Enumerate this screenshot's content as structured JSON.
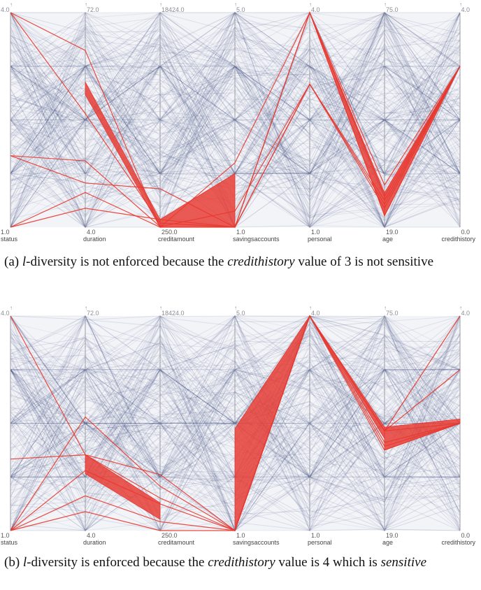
{
  "chart_data": [
    {
      "type": "parallel-coordinates",
      "axes": [
        {
          "name": "status",
          "max_label": "4.0",
          "min_label": "1.0",
          "range": [
            1,
            4
          ]
        },
        {
          "name": "duration",
          "max_label": "72.0",
          "min_label": "4.0",
          "range": [
            4,
            72
          ]
        },
        {
          "name": "creditamount",
          "max_label": "18424.0",
          "min_label": "250.0",
          "range": [
            250,
            18424
          ]
        },
        {
          "name": "savingsaccounts",
          "max_label": "5.0",
          "min_label": "1.0",
          "range": [
            1,
            5
          ]
        },
        {
          "name": "personal",
          "max_label": "4.0",
          "min_label": "1.0",
          "range": [
            1,
            4
          ]
        },
        {
          "name": "age",
          "max_label": "75.0",
          "min_label": "19.0",
          "range": [
            19,
            75
          ]
        },
        {
          "name": "credithistory",
          "max_label": "4.0",
          "min_label": "0.0",
          "range": [
            0,
            4
          ]
        }
      ],
      "highlight_color": "#e8382f",
      "context_color": "#2b3a73",
      "highlighted_records": [
        [
          4,
          60,
          250,
          1,
          3,
          25,
          3
        ],
        [
          4,
          40,
          600,
          1,
          4,
          22,
          3
        ],
        [
          2,
          25,
          300,
          1.3,
          3,
          24,
          3
        ],
        [
          2,
          18,
          3500,
          1,
          4,
          27,
          3
        ],
        [
          1,
          15,
          250,
          2.2,
          4,
          30,
          3
        ],
        [
          1,
          10,
          900,
          1,
          3,
          26,
          3
        ]
      ],
      "highlight_bands": [
        {
          "axis_from": "duration",
          "axis_to": "creditamount",
          "from": [
            46,
            50
          ],
          "to": [
            250,
            900
          ]
        },
        {
          "axis_from": "creditamount",
          "axis_to": "savingsaccounts",
          "from": [
            250,
            900
          ],
          "to": [
            1,
            2.0
          ]
        },
        {
          "axis_from": "personal",
          "axis_to": "age",
          "from": [
            4,
            4
          ],
          "to": [
            22,
            28
          ]
        },
        {
          "axis_from": "age",
          "axis_to": "credithistory",
          "from": [
            22,
            28
          ],
          "to": [
            3,
            3
          ]
        }
      ]
    },
    {
      "type": "parallel-coordinates",
      "axes": [
        {
          "name": "status",
          "max_label": "4.0",
          "min_label": "1.0",
          "range": [
            1,
            4
          ]
        },
        {
          "name": "duration",
          "max_label": "72.0",
          "min_label": "4.0",
          "range": [
            4,
            72
          ]
        },
        {
          "name": "creditamount",
          "max_label": "18424.0",
          "min_label": "250.0",
          "range": [
            250,
            18424
          ]
        },
        {
          "name": "savingsaccounts",
          "max_label": "5.0",
          "min_label": "1.0",
          "range": [
            1,
            5
          ]
        },
        {
          "name": "personal",
          "max_label": "4.0",
          "min_label": "1.0",
          "range": [
            1,
            4
          ]
        },
        {
          "name": "age",
          "max_label": "75.0",
          "min_label": "19.0",
          "range": [
            19,
            75
          ]
        },
        {
          "name": "credithistory",
          "max_label": "4.0",
          "min_label": "0.0",
          "range": [
            0,
            4
          ]
        }
      ],
      "highlight_color": "#e8382f",
      "context_color": "#2b3a73",
      "highlighted_records": [
        [
          4,
          28,
          3000,
          1,
          4,
          45,
          4
        ],
        [
          1,
          40,
          4000,
          1,
          4,
          45,
          3
        ],
        [
          1,
          23,
          2500,
          1,
          4,
          45,
          2
        ],
        [
          2,
          28,
          5000,
          1,
          4,
          40,
          2
        ],
        [
          1,
          15,
          1000,
          1,
          4,
          41,
          2
        ],
        [
          1,
          10,
          250,
          1,
          4,
          42,
          2
        ]
      ],
      "highlight_bands": [
        {
          "axis_from": "duration",
          "axis_to": "creditamount",
          "from": [
            22,
            28
          ],
          "to": [
            1200,
            2600
          ]
        },
        {
          "axis_from": "savingsaccounts",
          "axis_to": "personal",
          "from": [
            1,
            2.9
          ],
          "to": [
            4,
            4
          ]
        },
        {
          "axis_from": "personal",
          "axis_to": "age",
          "from": [
            4,
            4
          ],
          "to": [
            43,
            46
          ]
        },
        {
          "axis_from": "age",
          "axis_to": "credithistory",
          "from": [
            40,
            46
          ],
          "to": [
            2,
            2.08
          ]
        }
      ]
    }
  ],
  "captions": {
    "a": {
      "label": "(a)",
      "italic1": "l",
      "text1": "-diversity is not enforced because the",
      "italic2": "credithistory",
      "text2": "value of 3 is not sensitive"
    },
    "b": {
      "label": "(b)",
      "italic1": "l",
      "text1": "-diversity is enforced because the",
      "italic2": "credithistory",
      "text2": "value is 4 which is",
      "italic3": "sensitive"
    }
  }
}
